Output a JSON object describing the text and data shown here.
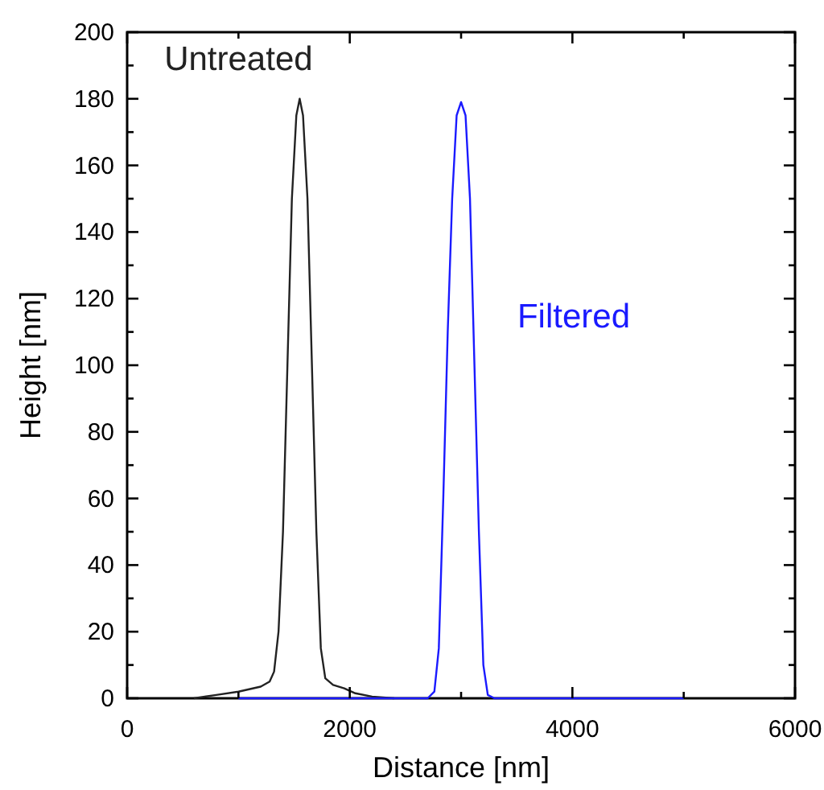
{
  "chart_data": {
    "type": "line",
    "xlabel": "Distance [nm]",
    "ylabel": "Height [nm]",
    "xlim": [
      0,
      6000
    ],
    "ylim": [
      0,
      200
    ],
    "xticks": [
      0,
      {
        "value": 1000,
        "label": null
      },
      2000,
      {
        "value": 3000,
        "label": null
      },
      4000,
      {
        "value": 5000,
        "label": null
      },
      6000
    ],
    "yticks": [
      0,
      {
        "value": 10,
        "label": null
      },
      20,
      {
        "value": 30,
        "label": null
      },
      40,
      {
        "value": 50,
        "label": null
      },
      60,
      {
        "value": 70,
        "label": null
      },
      80,
      {
        "value": 90,
        "label": null
      },
      100,
      {
        "value": 110,
        "label": null
      },
      120,
      {
        "value": 130,
        "label": null
      },
      140,
      {
        "value": 150,
        "label": null
      },
      160,
      {
        "value": 170,
        "label": null
      },
      180,
      {
        "value": 190,
        "label": null
      },
      200
    ],
    "grid": false,
    "series": [
      {
        "name": "Untreated",
        "color": "#222222",
        "x": [
          600,
          800,
          1000,
          1200,
          1280,
          1320,
          1360,
          1400,
          1440,
          1480,
          1520,
          1550,
          1580,
          1620,
          1660,
          1700,
          1740,
          1780,
          1850,
          1950,
          2050,
          2200,
          2400
        ],
        "values": [
          0,
          1,
          2,
          3.5,
          5,
          8,
          20,
          50,
          100,
          150,
          175,
          180,
          175,
          150,
          100,
          50,
          15,
          6,
          4,
          3,
          1.5,
          0.5,
          0
        ]
      },
      {
        "name": "Filtered",
        "color": "#1a1aff",
        "x": [
          1000,
          2700,
          2760,
          2800,
          2840,
          2880,
          2920,
          2960,
          3000,
          3040,
          3080,
          3120,
          3160,
          3200,
          3240,
          3300,
          5000
        ],
        "values": [
          0,
          0,
          2,
          15,
          60,
          110,
          150,
          175,
          179,
          175,
          150,
          100,
          50,
          10,
          1,
          0,
          0
        ]
      }
    ]
  }
}
